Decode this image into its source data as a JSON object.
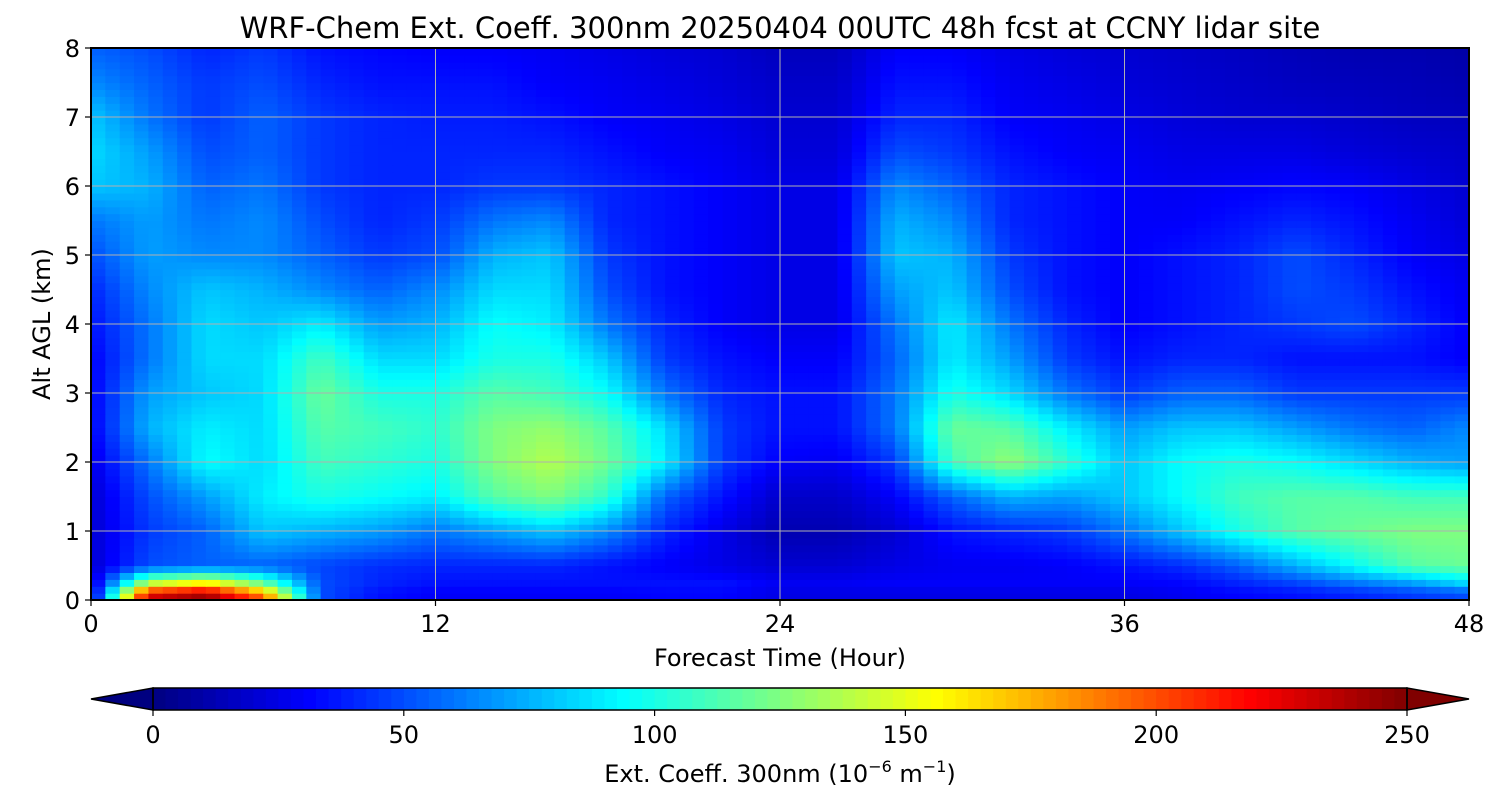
{
  "chart_data": {
    "type": "heatmap",
    "title": "WRF-Chem Ext. Coeff. 300nm  20250404 00UTC 48h fcst at CCNY lidar site",
    "xlabel": "Forecast Time (Hour)",
    "ylabel": "Alt AGL (km)",
    "xlim": [
      0,
      48
    ],
    "ylim": [
      0,
      8
    ],
    "x_ticks": [
      "0",
      "12",
      "24",
      "36",
      "48"
    ],
    "y_ticks": [
      "0",
      "1",
      "2",
      "3",
      "4",
      "5",
      "6",
      "7",
      "8"
    ],
    "grid": true,
    "colormap": "jet",
    "colorbar": {
      "orientation": "horizontal",
      "placement": "bottom",
      "range": [
        0,
        250
      ],
      "extend": "both",
      "ticks": [
        "0",
        "50",
        "100",
        "150",
        "200",
        "250"
      ],
      "label_main": "Ext. Coeff. 300nm  (10",
      "label_exp1": "−6",
      "label_mid": " m",
      "label_exp2": "−1",
      "label_end": ")"
    },
    "x": [
      0,
      2,
      4,
      6,
      8,
      10,
      12,
      14,
      16,
      18,
      20,
      22,
      24,
      26,
      28,
      30,
      32,
      34,
      36,
      38,
      40,
      42,
      44,
      46,
      48
    ],
    "y": [
      0.0,
      0.1,
      0.25,
      0.5,
      1.0,
      1.5,
      2.0,
      2.5,
      3.0,
      3.5,
      4.0,
      4.5,
      5.0,
      5.5,
      6.0,
      6.5,
      7.0,
      7.5,
      8.0
    ],
    "z": [
      [
        20,
        235,
        245,
        205,
        50,
        35,
        30,
        30,
        30,
        30,
        32,
        32,
        25,
        25,
        25,
        25,
        25,
        25,
        25,
        28,
        32,
        35,
        40,
        45,
        50
      ],
      [
        20,
        220,
        240,
        180,
        50,
        35,
        30,
        30,
        30,
        30,
        32,
        32,
        25,
        25,
        25,
        25,
        25,
        25,
        25,
        28,
        32,
        35,
        40,
        45,
        50
      ],
      [
        20,
        140,
        160,
        120,
        50,
        40,
        35,
        35,
        35,
        35,
        35,
        35,
        28,
        28,
        30,
        30,
        30,
        30,
        30,
        32,
        40,
        48,
        60,
        70,
        85
      ],
      [
        20,
        50,
        55,
        55,
        48,
        42,
        40,
        40,
        40,
        35,
        30,
        25,
        20,
        20,
        25,
        28,
        28,
        30,
        35,
        42,
        55,
        75,
        95,
        115,
        120
      ],
      [
        20,
        45,
        55,
        80,
        75,
        70,
        60,
        70,
        80,
        65,
        40,
        25,
        12,
        12,
        20,
        35,
        40,
        45,
        60,
        80,
        100,
        115,
        120,
        125,
        125
      ],
      [
        20,
        50,
        70,
        90,
        100,
        95,
        90,
        115,
        125,
        105,
        55,
        35,
        18,
        18,
        30,
        55,
        75,
        70,
        80,
        95,
        110,
        115,
        115,
        110,
        110
      ],
      [
        25,
        60,
        95,
        85,
        110,
        105,
        100,
        125,
        138,
        120,
        90,
        45,
        30,
        28,
        45,
        110,
        130,
        105,
        80,
        95,
        100,
        95,
        85,
        75,
        70
      ],
      [
        30,
        75,
        90,
        85,
        115,
        110,
        105,
        125,
        130,
        115,
        85,
        45,
        35,
        35,
        60,
        120,
        115,
        90,
        70,
        80,
        80,
        70,
        60,
        55,
        65
      ],
      [
        30,
        70,
        80,
        85,
        120,
        100,
        100,
        115,
        110,
        95,
        60,
        40,
        35,
        35,
        60,
        100,
        85,
        60,
        45,
        55,
        55,
        45,
        45,
        45,
        45
      ],
      [
        30,
        60,
        85,
        85,
        110,
        85,
        85,
        100,
        100,
        80,
        45,
        35,
        30,
        30,
        55,
        90,
        70,
        45,
        35,
        40,
        40,
        35,
        35,
        35,
        30
      ],
      [
        35,
        60,
        85,
        80,
        90,
        70,
        75,
        95,
        90,
        60,
        40,
        30,
        25,
        25,
        60,
        90,
        60,
        40,
        30,
        35,
        40,
        45,
        50,
        40,
        30
      ],
      [
        40,
        65,
        80,
        75,
        65,
        55,
        65,
        85,
        85,
        50,
        35,
        30,
        25,
        25,
        70,
        80,
        50,
        35,
        30,
        35,
        40,
        50,
        45,
        35,
        28
      ],
      [
        50,
        70,
        65,
        65,
        55,
        45,
        50,
        75,
        80,
        45,
        35,
        30,
        25,
        25,
        80,
        75,
        45,
        35,
        30,
        35,
        40,
        50,
        40,
        30,
        25
      ],
      [
        60,
        70,
        60,
        65,
        50,
        40,
        45,
        60,
        65,
        40,
        35,
        30,
        25,
        25,
        75,
        65,
        40,
        35,
        30,
        30,
        35,
        40,
        35,
        28,
        22
      ],
      [
        80,
        75,
        55,
        60,
        45,
        40,
        40,
        45,
        45,
        40,
        35,
        30,
        25,
        25,
        65,
        55,
        40,
        35,
        30,
        28,
        30,
        32,
        30,
        25,
        20
      ],
      [
        85,
        70,
        50,
        55,
        45,
        40,
        40,
        40,
        40,
        35,
        30,
        28,
        22,
        22,
        50,
        45,
        35,
        30,
        28,
        25,
        25,
        25,
        22,
        20,
        18
      ],
      [
        80,
        60,
        45,
        55,
        45,
        40,
        38,
        38,
        35,
        30,
        28,
        25,
        20,
        20,
        40,
        40,
        30,
        28,
        25,
        22,
        20,
        20,
        18,
        16,
        15
      ],
      [
        65,
        55,
        45,
        50,
        40,
        35,
        35,
        35,
        30,
        28,
        25,
        22,
        18,
        18,
        35,
        35,
        28,
        25,
        22,
        20,
        18,
        16,
        15,
        14,
        12
      ],
      [
        55,
        50,
        40,
        45,
        35,
        32,
        30,
        30,
        28,
        25,
        22,
        20,
        15,
        15,
        30,
        30,
        25,
        22,
        20,
        18,
        16,
        14,
        12,
        12,
        10
      ]
    ]
  }
}
